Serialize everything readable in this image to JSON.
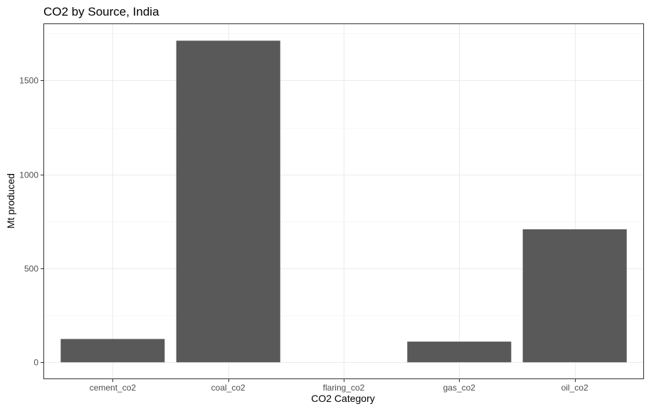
{
  "chart_data": {
    "type": "bar",
    "title": "CO2 by Source, India",
    "xlabel": "CO2 Category",
    "ylabel": "Mt produced",
    "categories": [
      "cement_co2",
      "coal_co2",
      "flaring_co2",
      "gas_co2",
      "oil_co2"
    ],
    "values": [
      124,
      1712,
      0,
      110,
      708
    ],
    "ylim": [
      -90,
      1800
    ],
    "yticks": [
      0,
      500,
      1000,
      1500
    ],
    "grid": true,
    "legend": "none",
    "bar_color": "#595959"
  }
}
